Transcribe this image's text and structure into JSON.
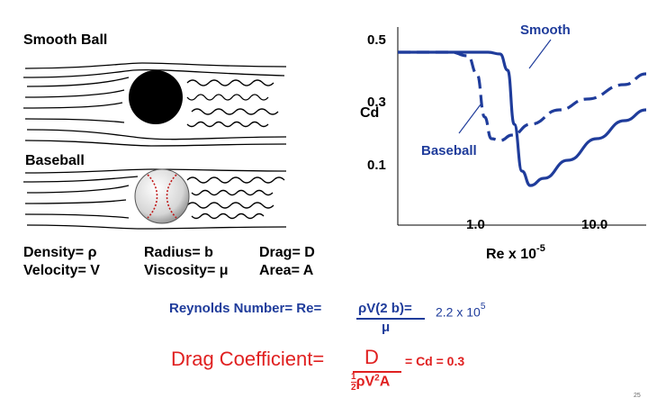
{
  "titles": {
    "smooth_ball": "Smooth Ball",
    "baseball": "Baseball"
  },
  "variables": {
    "density": "Density= ρ",
    "velocity": "Velocity= V",
    "radius": "Radius= b",
    "viscosity": "Viscosity= μ",
    "drag": "Drag= D",
    "area": "Area= A"
  },
  "reynolds": {
    "label": "Reynolds Number= Re=",
    "numerator": "ρV(2 b)=",
    "denominator": "μ",
    "value_base": "2.2 x 10",
    "value_exp": "5"
  },
  "drag_coef": {
    "label": "Drag Coefficient=",
    "numerator": "D",
    "den_frac_num": "1",
    "den_frac_den": "2",
    "den_rest": "ρV",
    "den_sup": "2",
    "den_end": "A",
    "result": "= Cd = 0.3"
  },
  "colors": {
    "blue": "#1f3c9b",
    "red": "#e02020",
    "curve": "#1f3c9b"
  },
  "slide_number": "25",
  "chart_data": {
    "type": "line",
    "ylabel": "Cd",
    "xlabel": "Re x 10",
    "xlabel_exp": "-5",
    "x_scale": "log",
    "y_ticks": [
      "0.5",
      "0.3",
      "0.1"
    ],
    "x_ticks": [
      "1.0",
      "10.0"
    ],
    "ylim": [
      0.0,
      0.55
    ],
    "xlim": [
      0.3,
      30
    ],
    "series": [
      {
        "name": "Smooth",
        "style": "solid",
        "x": [
          0.3,
          0.8,
          1.6,
          2.0,
          2.3,
          2.6,
          3.0,
          3.5,
          4.5,
          7,
          12,
          20,
          30
        ],
        "y": [
          0.48,
          0.48,
          0.48,
          0.475,
          0.43,
          0.28,
          0.15,
          0.11,
          0.13,
          0.18,
          0.24,
          0.29,
          0.32
        ]
      },
      {
        "name": "Baseball",
        "style": "dashed",
        "x": [
          0.3,
          0.8,
          1.1,
          1.3,
          1.5,
          1.7,
          2.0,
          2.5,
          3.5,
          6,
          10,
          20,
          30
        ],
        "y": [
          0.48,
          0.48,
          0.47,
          0.42,
          0.3,
          0.24,
          0.235,
          0.25,
          0.28,
          0.32,
          0.35,
          0.39,
          0.42
        ]
      }
    ]
  }
}
